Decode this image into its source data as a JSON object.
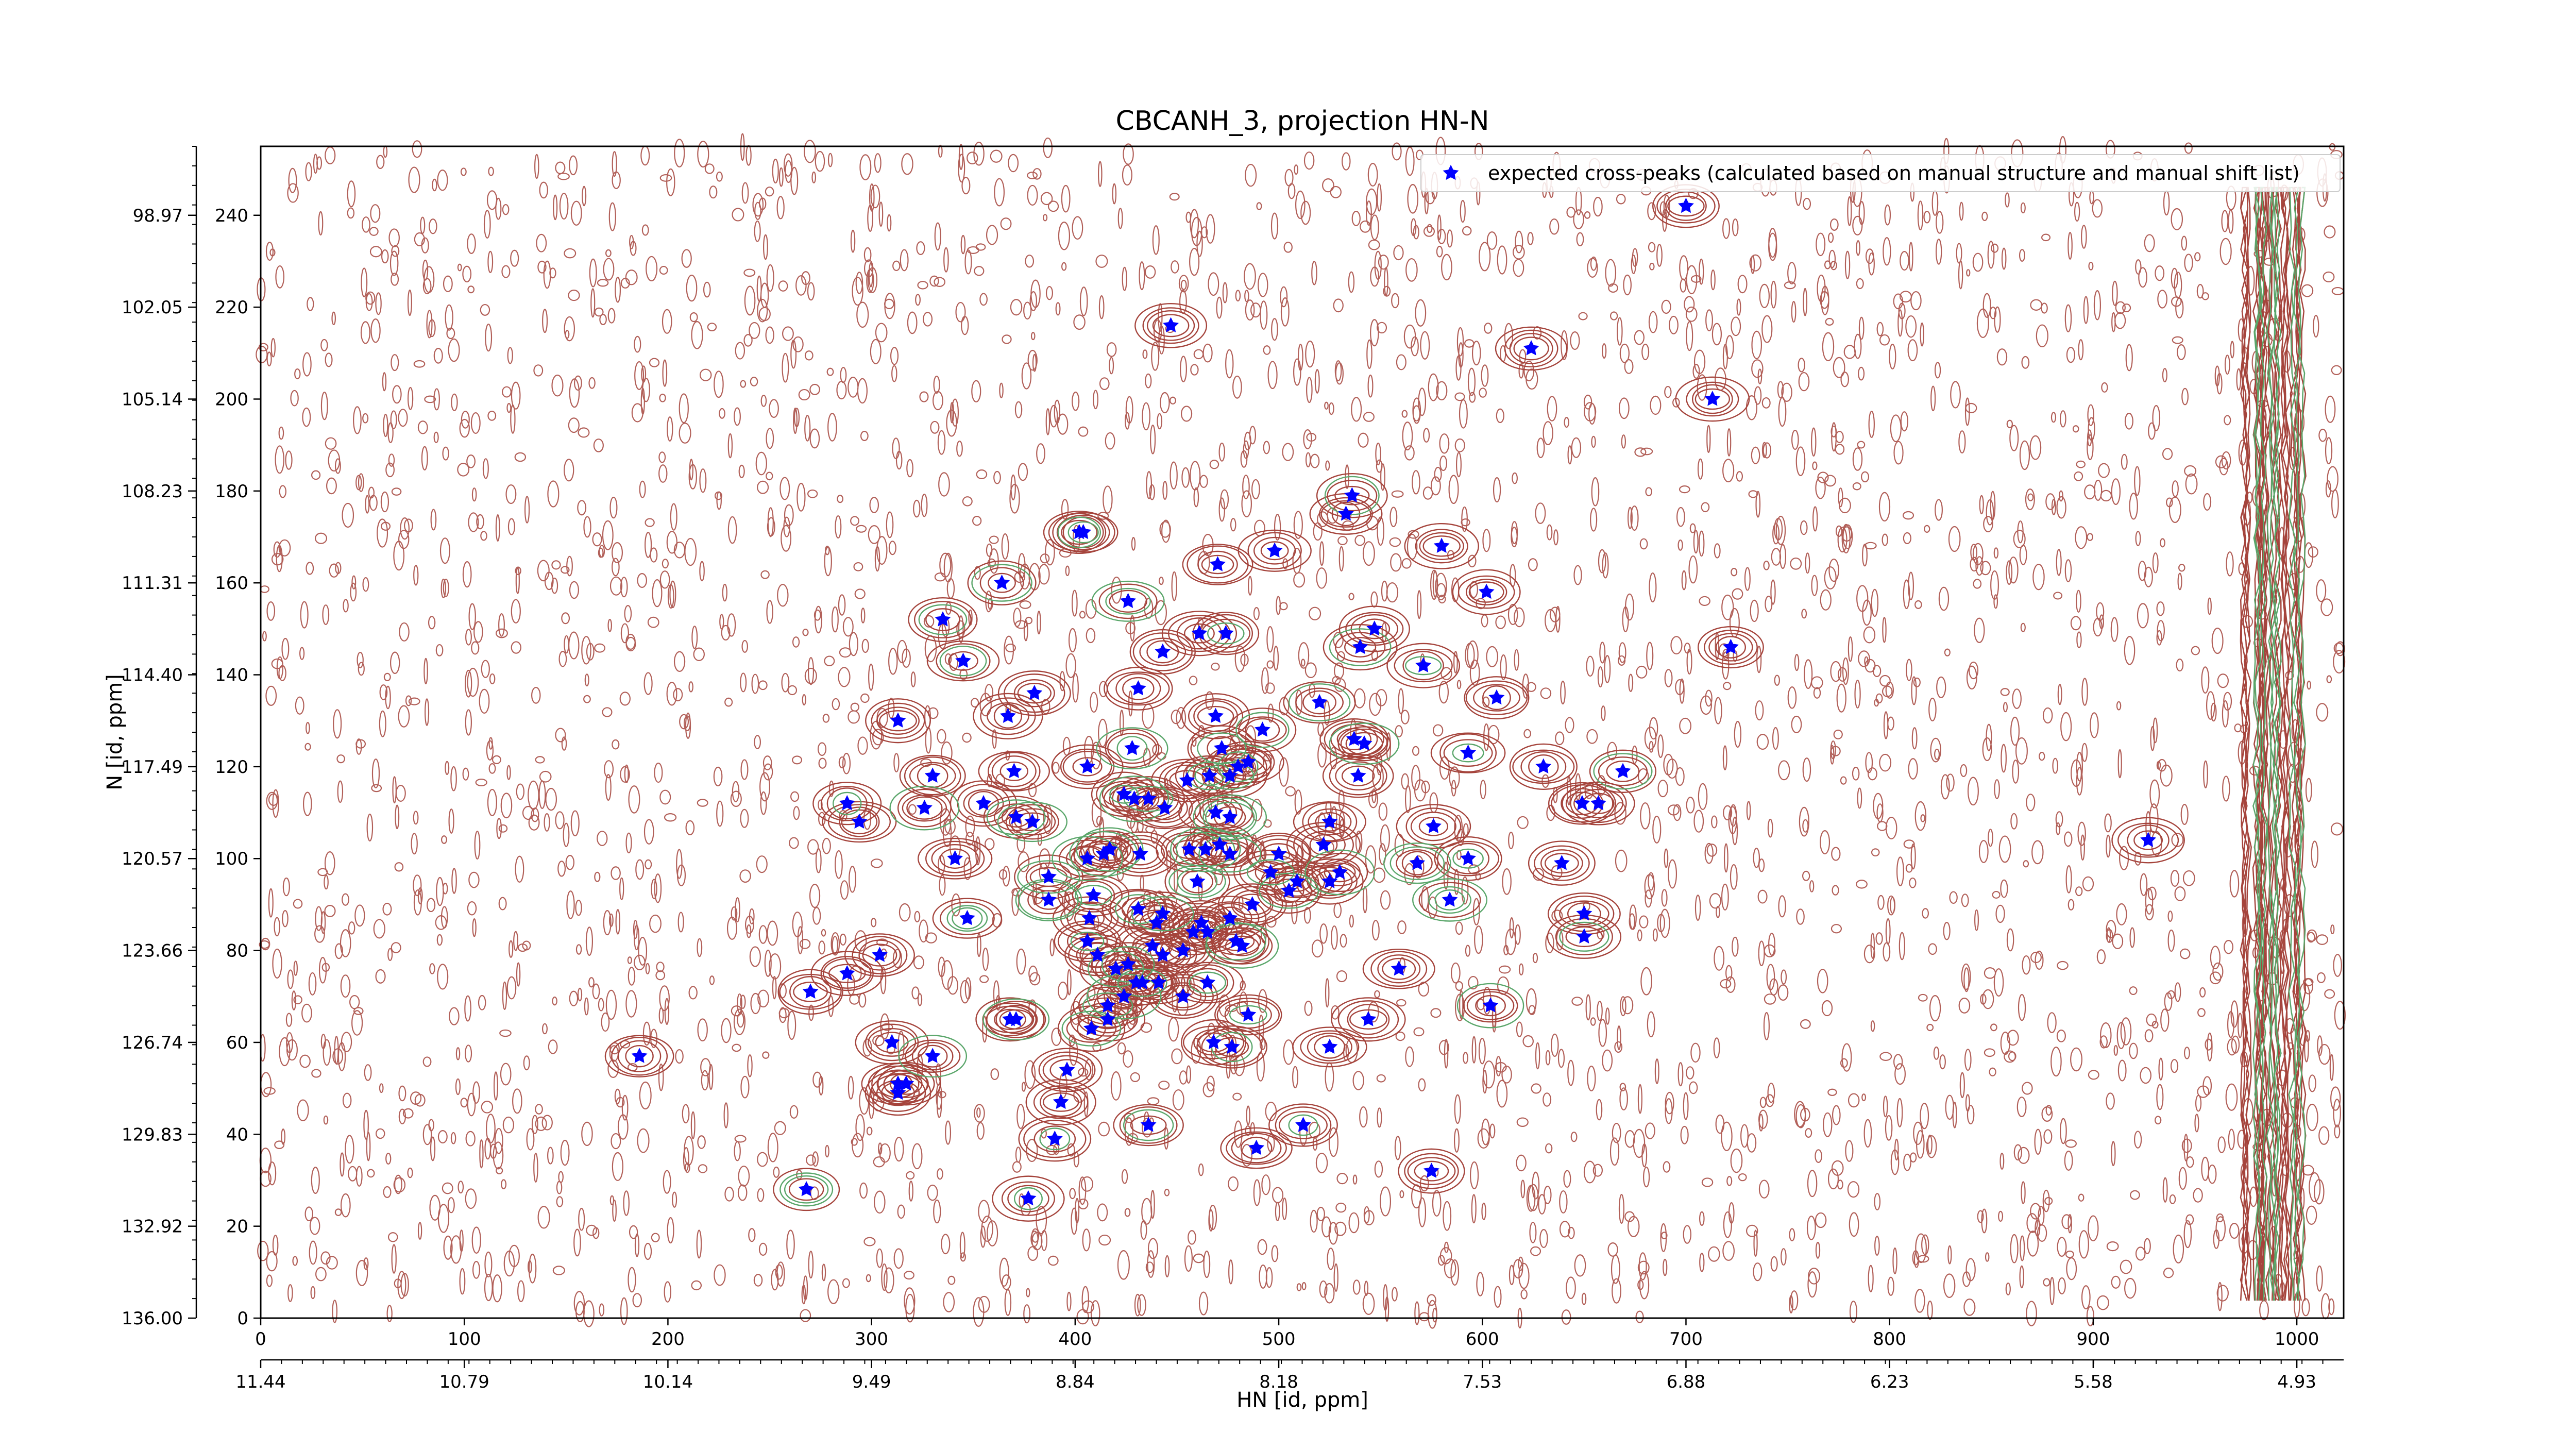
{
  "chart_data": {
    "type": "scatter",
    "title": "CBCANH_3, projection HN-N",
    "xlabel": "HN [id, ppm]",
    "ylabel": "N [id, ppm]",
    "legend_loc": "upper right",
    "xlim": [
      0,
      1023
    ],
    "ylim": [
      0,
      255
    ],
    "xticks": [
      0,
      100,
      200,
      300,
      400,
      500,
      600,
      700,
      800,
      900,
      1000
    ],
    "yticks": [
      0,
      20,
      40,
      60,
      80,
      100,
      120,
      140,
      160,
      180,
      200,
      220,
      240
    ],
    "x2ticks": [
      {
        "value": 0,
        "label": "11.44"
      },
      {
        "value": 100,
        "label": "10.79"
      },
      {
        "value": 200,
        "label": "10.14"
      },
      {
        "value": 300,
        "label": "9.49"
      },
      {
        "value": 400,
        "label": "8.84"
      },
      {
        "value": 500,
        "label": "8.18"
      },
      {
        "value": 600,
        "label": "7.53"
      },
      {
        "value": 700,
        "label": "6.88"
      },
      {
        "value": 800,
        "label": "6.23"
      },
      {
        "value": 900,
        "label": "5.58"
      },
      {
        "value": 1000,
        "label": "4.93"
      }
    ],
    "y2ticks": [
      {
        "value": 0,
        "label": "136.00"
      },
      {
        "value": 20,
        "label": "132.92"
      },
      {
        "value": 40,
        "label": "129.83"
      },
      {
        "value": 60,
        "label": "126.74"
      },
      {
        "value": 80,
        "label": "123.66"
      },
      {
        "value": 100,
        "label": "120.57"
      },
      {
        "value": 120,
        "label": "117.49"
      },
      {
        "value": 140,
        "label": "114.40"
      },
      {
        "value": 160,
        "label": "111.31"
      },
      {
        "value": 180,
        "label": "108.23"
      },
      {
        "value": 200,
        "label": "105.14"
      },
      {
        "value": 220,
        "label": "102.05"
      },
      {
        "value": 240,
        "label": "98.97"
      }
    ],
    "series": [
      {
        "name": "expected cross-peaks (calculated based on manual structure and manual shift list)",
        "color": "#0000ff",
        "x": [
          700,
          447,
          624,
          713,
          536,
          533,
          402,
          404,
          498,
          580,
          470,
          364,
          602,
          426,
          335,
          547,
          540,
          461,
          474,
          443,
          722,
          345,
          571,
          431,
          380,
          607,
          367,
          313,
          469,
          520,
          492,
          537,
          542,
          593,
          428,
          472,
          330,
          370,
          406,
          480,
          485,
          476,
          466,
          455,
          630,
          669,
          539,
          424,
          429,
          436,
          444,
          288,
          326,
          355,
          371,
          379,
          576,
          649,
          657,
          294,
          525,
          469,
          476,
          456,
          417,
          414,
          341,
          387,
          406,
          432,
          464,
          471,
          476,
          500,
          522,
          496,
          530,
          568,
          593,
          639,
          927,
          460,
          505,
          509,
          525,
          387,
          409,
          431,
          443,
          462,
          476,
          458,
          487,
          584,
          347,
          407,
          440,
          465,
          650,
          650,
          438,
          453,
          479,
          482,
          304,
          406,
          411,
          420,
          426,
          443,
          465,
          559,
          288,
          270,
          430,
          433,
          441,
          424,
          416,
          453,
          368,
          371,
          408,
          416,
          485,
          544,
          604,
          310,
          468,
          477,
          525,
          330,
          186,
          396,
          313,
          317,
          313,
          393,
          436,
          390,
          512,
          489,
          575,
          268,
          377
        ],
        "values": [
          242,
          216,
          211,
          200,
          179,
          175,
          171,
          171,
          167,
          168,
          164,
          160,
          158,
          156,
          152,
          150,
          146,
          149,
          149,
          145,
          146,
          143,
          142,
          137,
          136,
          135,
          131,
          130,
          131,
          134,
          128,
          126,
          125,
          123,
          124,
          124,
          118,
          119,
          120,
          120,
          121,
          118,
          118,
          117,
          120,
          119,
          118,
          114,
          113,
          113,
          111,
          112,
          111,
          112,
          109,
          108,
          107,
          112,
          112,
          108,
          108,
          110,
          109,
          102,
          102,
          101,
          100,
          96,
          100,
          101,
          102,
          103,
          101,
          101,
          103,
          97,
          97,
          99,
          100,
          99,
          104,
          95,
          93,
          95,
          95,
          91,
          92,
          89,
          88,
          86,
          87,
          84,
          90,
          91,
          87,
          87,
          86,
          84,
          88,
          83,
          81,
          80,
          82,
          81,
          79,
          82,
          79,
          76,
          77,
          79,
          73,
          76,
          75,
          71,
          73,
          73,
          73,
          70,
          68,
          70,
          65,
          65,
          63,
          65,
          66,
          65,
          68,
          60,
          60,
          59,
          59,
          57,
          57,
          54,
          51,
          51,
          49,
          47,
          42,
          39,
          42,
          37,
          32,
          28,
          26
        ]
      }
    ]
  }
}
